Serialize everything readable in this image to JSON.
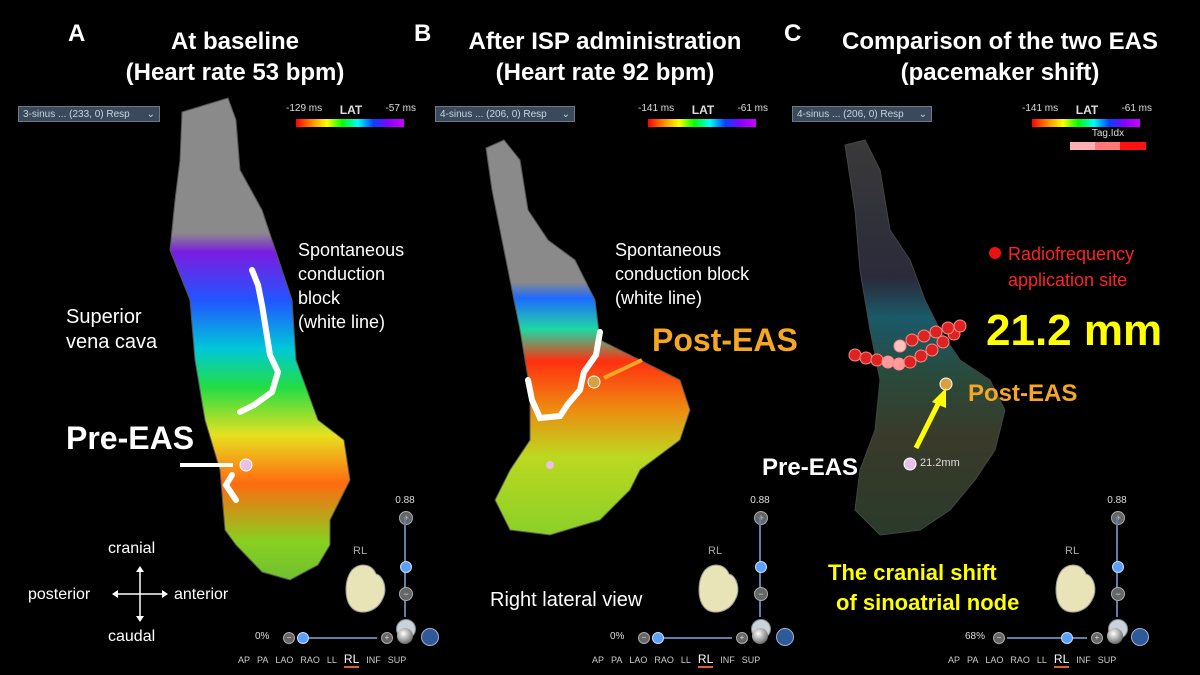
{
  "panels": [
    {
      "letter": "A",
      "title_line1": "At baseline",
      "title_line2": "(Heart rate 53 bpm)",
      "dropdown": "3-sinus ... (233, 0) Resp",
      "lat_min": "-129 ms",
      "lat_max": "-57 ms",
      "lat_label": "LAT",
      "block_line1": "Spontaneous",
      "block_line2": "conduction block",
      "block_line3": "(white line)",
      "svc_line1": "Superior",
      "svc_line2": "vena cava",
      "marker_label": "Pre-EAS",
      "slider_value": "0.88",
      "zoom_percent": "0%",
      "orientation_label": "RL"
    },
    {
      "letter": "B",
      "title_line1": "After ISP administration",
      "title_line2": "(Heart rate 92 bpm)",
      "dropdown": "4-sinus ... (206, 0) Resp",
      "lat_min": "-141 ms",
      "lat_max": "-61 ms",
      "lat_label": "LAT",
      "block_line1": "Spontaneous",
      "block_line2": "conduction block",
      "block_line3": "(white line)",
      "marker_label": "Post-EAS",
      "view_caption": "Right lateral view",
      "slider_value": "0.88",
      "zoom_percent": "0%",
      "orientation_label": "RL"
    },
    {
      "letter": "C",
      "title_line1": "Comparison of the two EAS",
      "title_line2": "(pacemaker shift)",
      "dropdown": "4-sinus ... (206, 0) Resp",
      "lat_min": "-141 ms",
      "lat_max": "-61 ms",
      "lat_label": "LAT",
      "tag_label": "Tag.Idx",
      "rf_line1": "Radiofrequency",
      "rf_line2": "application site",
      "distance": "21.2 mm",
      "distance_small": "21.2mm",
      "post_label": "Post-EAS",
      "pre_label": "Pre-EAS",
      "shift_line1": "The cranial shift",
      "shift_line2": "of sinoatrial node",
      "slider_value": "0.88",
      "zoom_percent": "68%",
      "orientation_label": "RL"
    }
  ],
  "compass": {
    "up": "cranial",
    "down": "caudal",
    "left": "posterior",
    "right": "anterior"
  },
  "view_buttons": [
    "AP",
    "PA",
    "LAO",
    "RAO",
    "LL",
    "RL",
    "INF",
    "SUP"
  ],
  "active_view": "RL",
  "colors": {
    "post_eas": "#f5a623",
    "shift_text": "#ffff00",
    "rf_text": "#ff2222",
    "distance_text": "#ffff00"
  }
}
